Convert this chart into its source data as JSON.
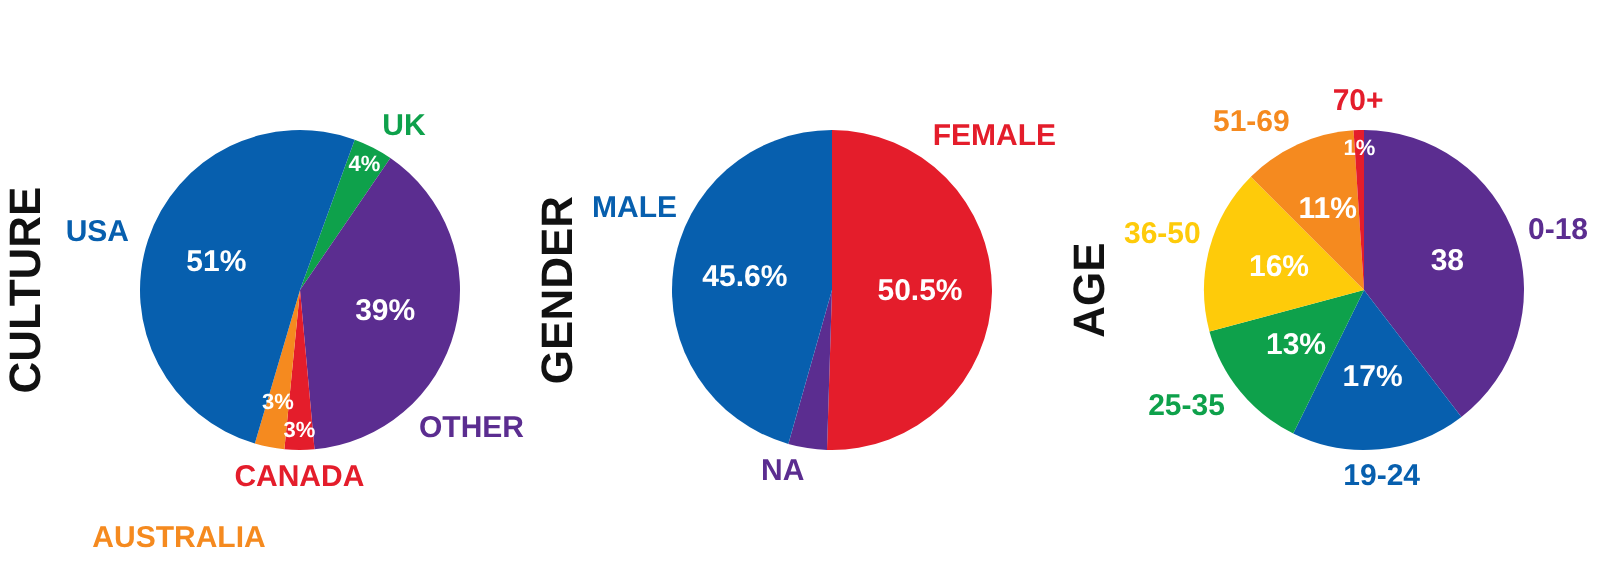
{
  "chart_data": [
    {
      "type": "pie",
      "title": "CULTURE",
      "categories": [
        "UK",
        "OTHER",
        "CANADA",
        "AUSTRALIA",
        "USA"
      ],
      "values": [
        4,
        39,
        3,
        3,
        51
      ],
      "colors": [
        "#0ea14b",
        "#5b2d90",
        "#e41d2b",
        "#f58a1f",
        "#075fae"
      ],
      "value_labels": [
        "4%",
        "39%",
        "3%",
        "3%",
        "51%"
      ]
    },
    {
      "type": "pie",
      "title": "GENDER",
      "categories": [
        "FEMALE",
        "NA",
        "MALE"
      ],
      "values": [
        50.5,
        3.9,
        45.6
      ],
      "colors": [
        "#e41d2b",
        "#5b2d90",
        "#075fae"
      ],
      "value_labels": [
        "50.5%",
        null,
        "45.6%"
      ]
    },
    {
      "type": "pie",
      "title": "AGE",
      "categories": [
        "0-18",
        "19-24",
        "25-35",
        "36-50",
        "51-69",
        "70+"
      ],
      "values": [
        38,
        17,
        13,
        16,
        11,
        1
      ],
      "colors": [
        "#5b2d90",
        "#075fae",
        "#0ea14b",
        "#fecb0a",
        "#f58a1f",
        "#e41d2b"
      ],
      "value_labels": [
        "38",
        "17%",
        "13%",
        "16%",
        "11%",
        "1%"
      ]
    }
  ]
}
